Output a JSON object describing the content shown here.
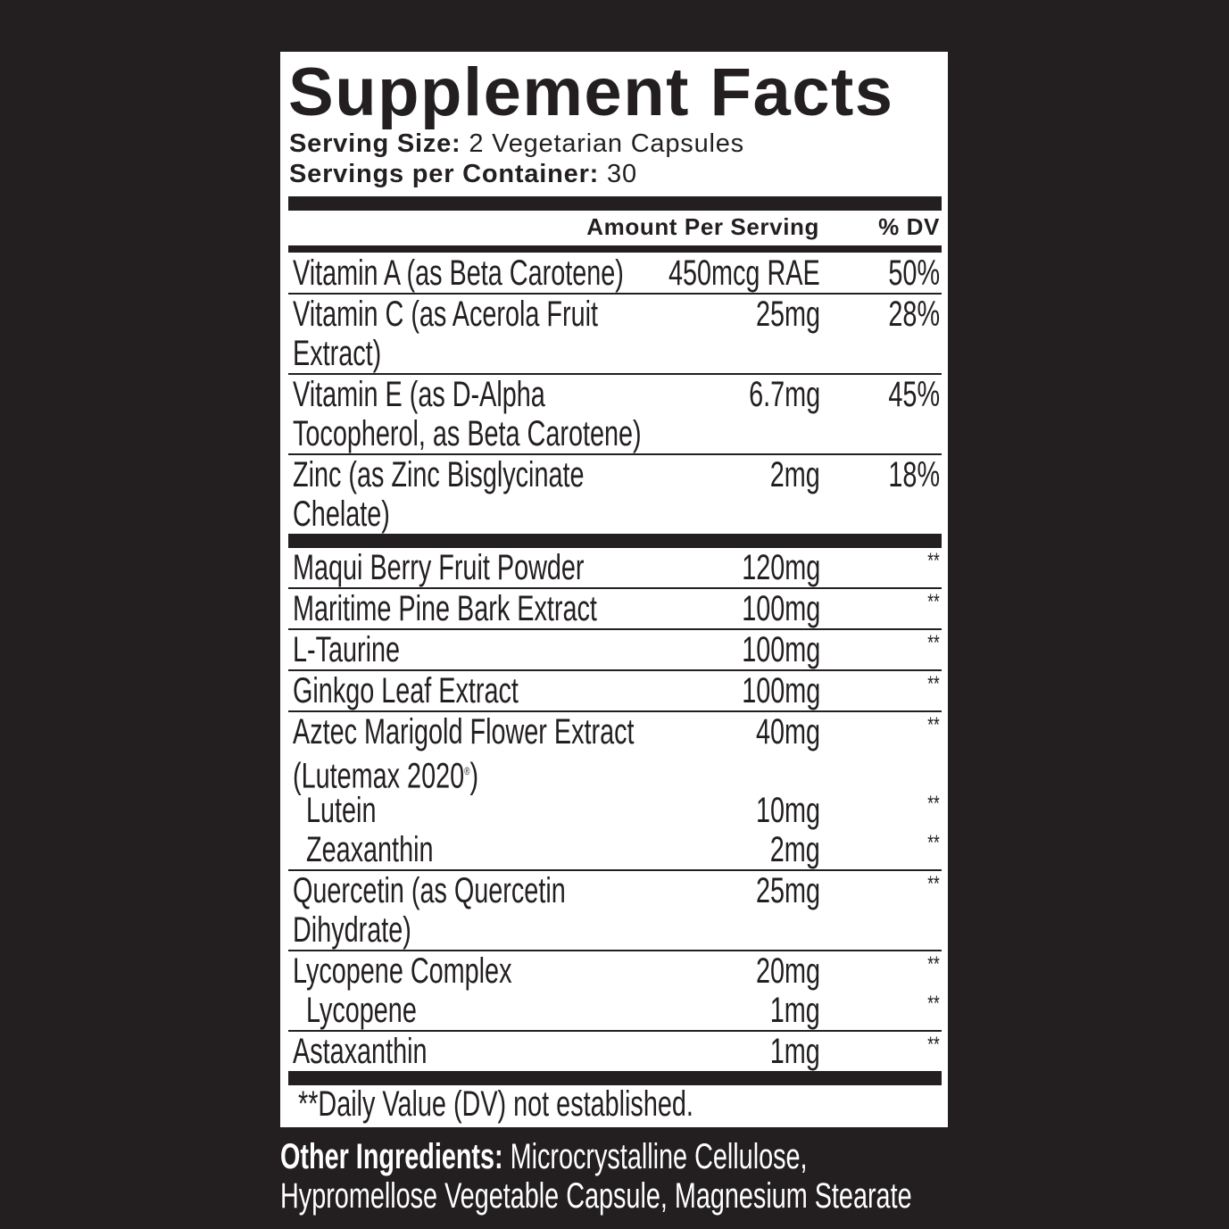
{
  "title": "Supplement Facts",
  "serving_size": {
    "label": "Serving Size:",
    "value": "2 Vegetarian Capsules"
  },
  "servings_per_container": {
    "label": "Servings per Container:",
    "value": "30"
  },
  "columns": {
    "amount": "Amount Per Serving",
    "dv": "% DV"
  },
  "rows": [
    {
      "lines": [
        "Vitamin A (as Beta Carotene)"
      ],
      "amount": "450mcg RAE",
      "dv": "50%"
    },
    {
      "lines": [
        "Vitamin C (as Acerola Fruit",
        "Extract)"
      ],
      "amount": "25mg",
      "dv": "28%"
    },
    {
      "lines": [
        "Vitamin E (as D-Alpha",
        "Tocopherol, as Beta Carotene)"
      ],
      "amount": "6.7mg",
      "dv": "45%"
    },
    {
      "lines": [
        "Zinc (as Zinc Bisglycinate",
        "Chelate)"
      ],
      "amount": "2mg",
      "dv": "18%",
      "thick": true
    },
    {
      "lines": [
        "Maqui Berry Fruit Powder"
      ],
      "amount": "120mg",
      "dv": "**"
    },
    {
      "lines": [
        "Maritime Pine Bark Extract"
      ],
      "amount": "100mg",
      "dv": "**"
    },
    {
      "lines": [
        "L-Taurine"
      ],
      "amount": "100mg",
      "dv": "**"
    },
    {
      "lines": [
        "Ginkgo Leaf Extract"
      ],
      "amount": "100mg",
      "dv": "**"
    },
    {
      "lines": [
        "Aztec Marigold Flower Extract",
        "(Lutemax 2020®)"
      ],
      "amount": "40mg",
      "dv": "**",
      "noline": true
    },
    {
      "lines": [
        "Lutein"
      ],
      "amount": "10mg",
      "dv": "**",
      "sub": true,
      "noline": true
    },
    {
      "lines": [
        "Zeaxanthin"
      ],
      "amount": "2mg",
      "dv": "**",
      "sub": true
    },
    {
      "lines": [
        "Quercetin (as Quercetin",
        "Dihydrate)"
      ],
      "amount": "25mg",
      "dv": "**"
    },
    {
      "lines": [
        "Lycopene Complex"
      ],
      "amount": "20mg",
      "dv": "**",
      "noline": true
    },
    {
      "lines": [
        "Lycopene"
      ],
      "amount": "1mg",
      "dv": "**",
      "sub": true
    },
    {
      "lines": [
        "Astaxanthin"
      ],
      "amount": "1mg",
      "dv": "**",
      "thick": true
    }
  ],
  "footnote": "**Daily Value (DV) not established.",
  "other_ingredients": {
    "label": "Other Ingredients:",
    "line1": "Microcrystalline Cellulose,",
    "line2": "Hypromellose Vegetable Capsule, Magnesium Stearate"
  },
  "colors": {
    "background": "#231f20",
    "label": "#ffffff",
    "ink": "#231f20"
  }
}
